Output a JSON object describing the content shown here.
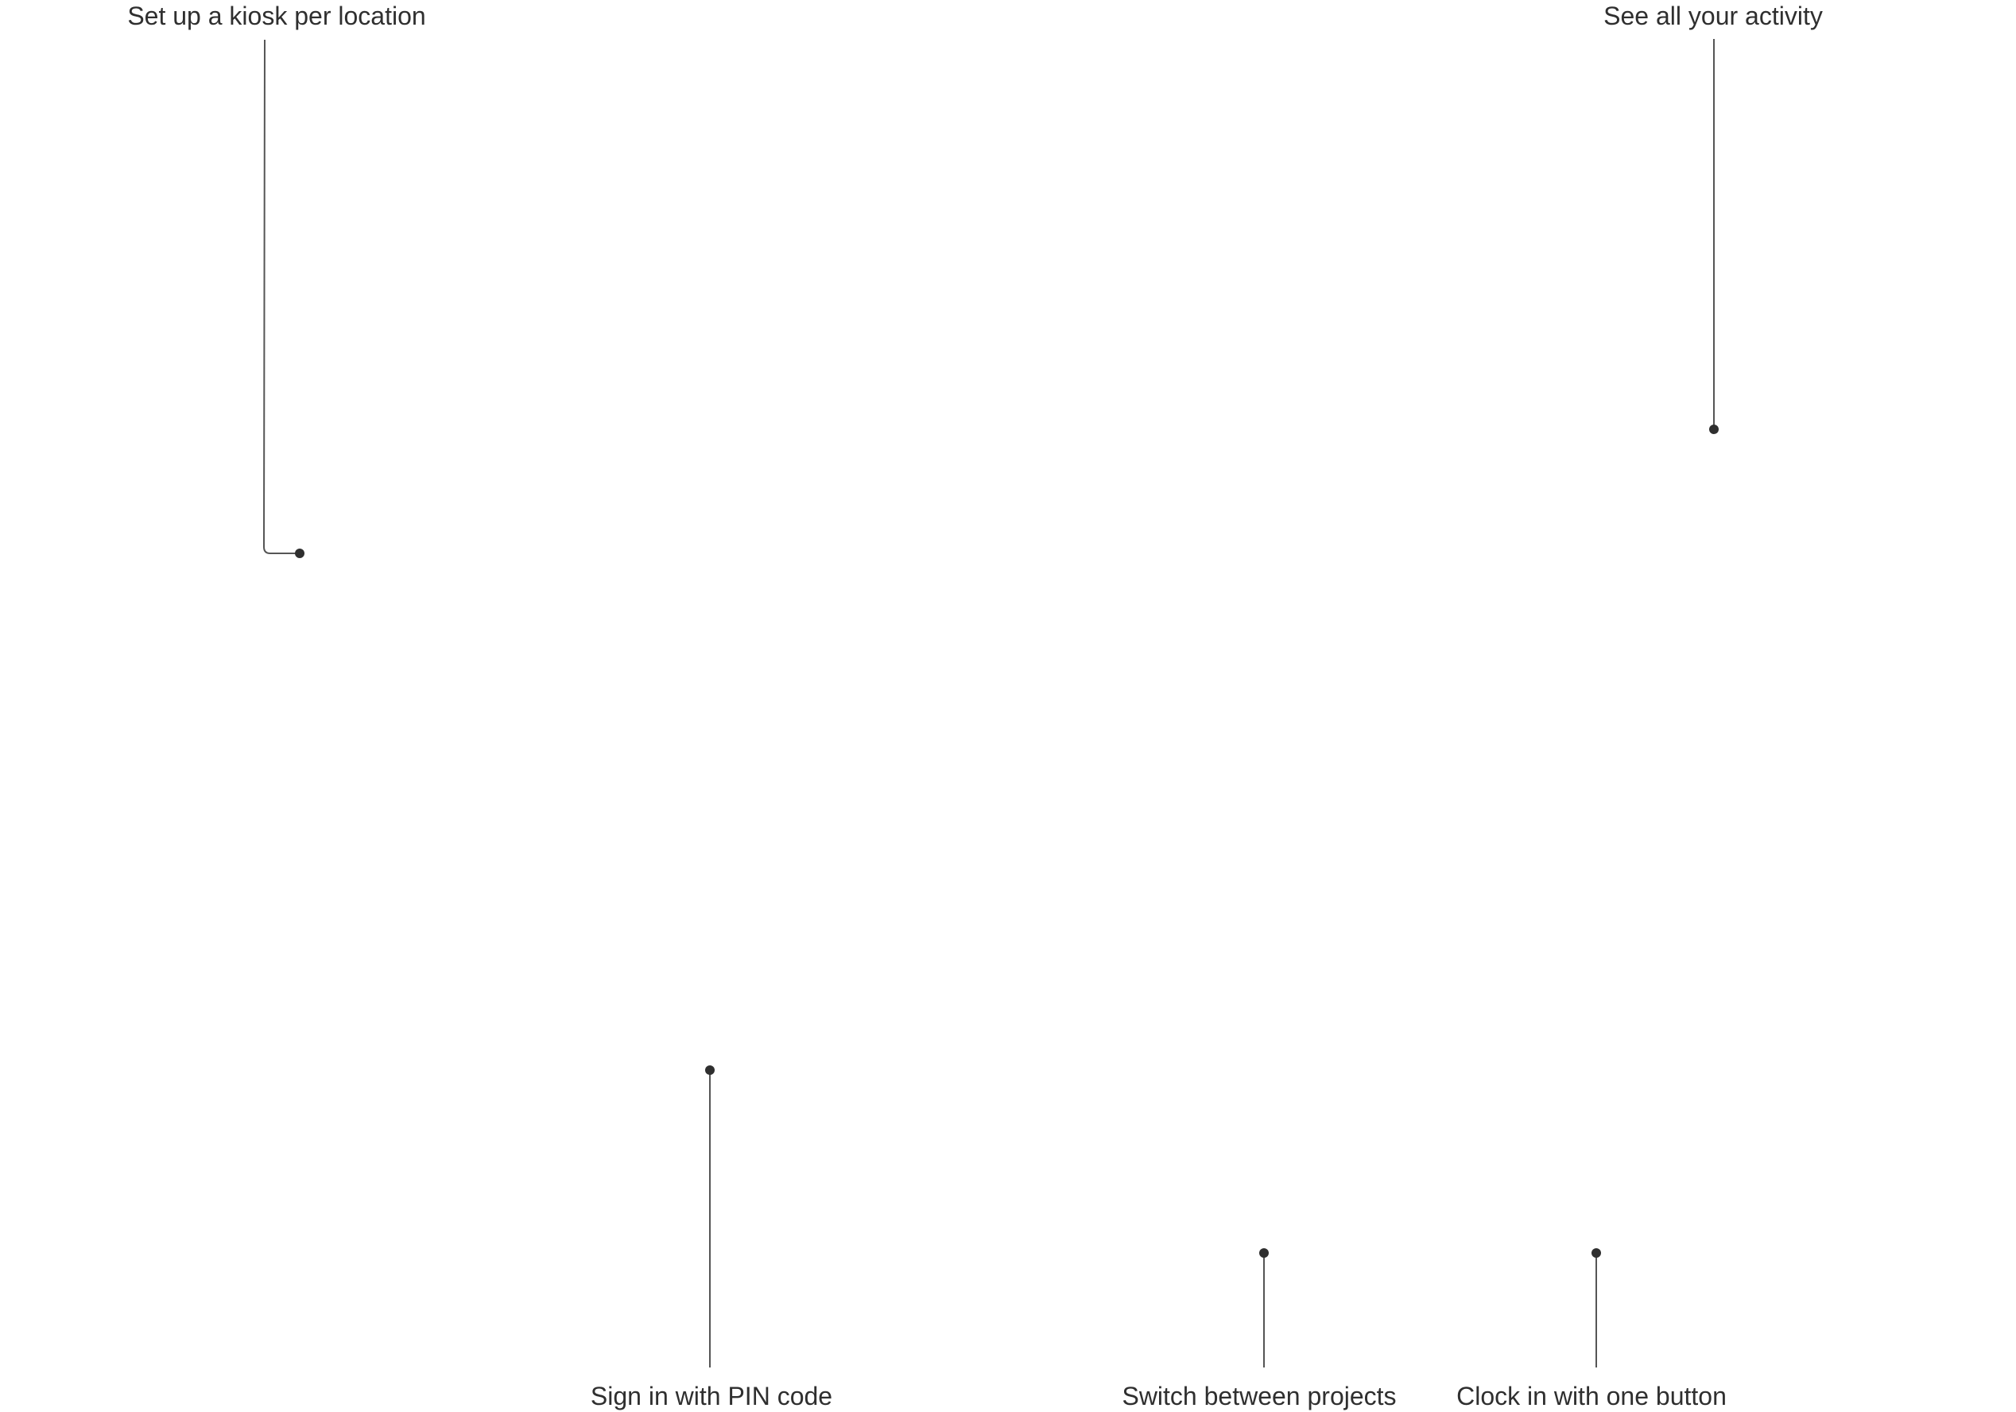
{
  "callouts": {
    "kiosk": {
      "label": "Set up a kiosk per location"
    },
    "activity": {
      "label": "See all your activity"
    },
    "pin": {
      "label": "Sign in with PIN code"
    },
    "projects": {
      "label": "Switch between projects"
    },
    "clock": {
      "label": "Clock in with one button"
    }
  },
  "colors": {
    "text": "#2f2f2f",
    "line": "#555555",
    "dot": "#2f2f2f"
  }
}
